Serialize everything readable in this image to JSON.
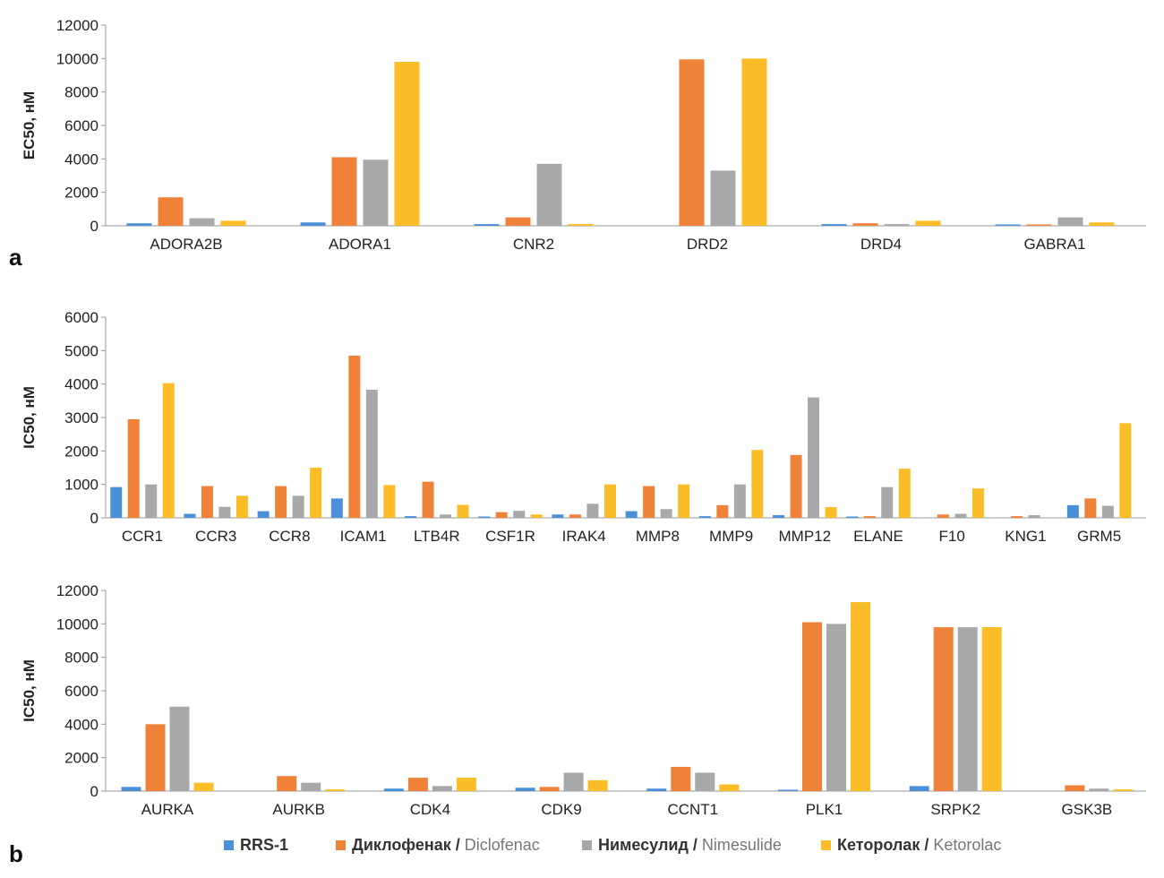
{
  "colors": {
    "rrs1": "#4a90d9",
    "diclofenac": "#ef8139",
    "nimesulide": "#a7a8aa",
    "ketorolac": "#fbbd27",
    "axis": "#999999",
    "text": "#222222"
  },
  "panel_letters": {
    "a": "a",
    "b": "b"
  },
  "legend": [
    {
      "key": "rrs1",
      "ru": "RRS-1",
      "sep": "",
      "en": ""
    },
    {
      "key": "diclofenac",
      "ru": "Диклофенак",
      "sep": " / ",
      "en": "Diclofenac"
    },
    {
      "key": "nimesulide",
      "ru": "Нимесулид",
      "sep": " / ",
      "en": "Nimesulide"
    },
    {
      "key": "ketorolac",
      "ru": "Кеторолак",
      "sep": " / ",
      "en": "Ketorolac"
    }
  ],
  "chart_data": [
    {
      "id": "chart-a",
      "type": "bar",
      "ylabel": "EC50, нМ",
      "ylim": [
        0,
        12000
      ],
      "yticks": [
        0,
        2000,
        4000,
        6000,
        8000,
        10000,
        12000
      ],
      "categories": [
        "ADORA2B",
        "ADORA1",
        "CNR2",
        "DRD2",
        "DRD4",
        "GABRA1"
      ],
      "series": [
        {
          "key": "rrs1",
          "values": [
            150,
            200,
            100,
            0,
            100,
            80
          ]
        },
        {
          "key": "diclofenac",
          "values": [
            1700,
            4100,
            500,
            9950,
            150,
            80
          ]
        },
        {
          "key": "nimesulide",
          "values": [
            450,
            3950,
            3700,
            3300,
            100,
            500
          ]
        },
        {
          "key": "ketorolac",
          "values": [
            300,
            9800,
            100,
            10000,
            300,
            200
          ]
        }
      ]
    },
    {
      "id": "chart-b1",
      "type": "bar",
      "ylabel": "IC50, нМ",
      "ylim": [
        0,
        6000
      ],
      "yticks": [
        0,
        1000,
        2000,
        3000,
        4000,
        5000,
        6000
      ],
      "categories": [
        "CCR1",
        "CCR3",
        "CCR8",
        "ICAM1",
        "LTB4R",
        "CSF1R",
        "IRAK4",
        "MMP8",
        "MMP9",
        "MMP12",
        "ELANE",
        "F10",
        "KNG1",
        "GRM5"
      ],
      "series": [
        {
          "key": "rrs1",
          "values": [
            920,
            120,
            200,
            580,
            50,
            30,
            100,
            200,
            50,
            80,
            30,
            0,
            0,
            380
          ]
        },
        {
          "key": "diclofenac",
          "values": [
            2950,
            950,
            950,
            4850,
            1080,
            170,
            100,
            950,
            380,
            1880,
            50,
            100,
            50,
            580
          ]
        },
        {
          "key": "nimesulide",
          "values": [
            1000,
            330,
            660,
            3830,
            100,
            210,
            420,
            260,
            1000,
            3600,
            920,
            120,
            80,
            360
          ]
        },
        {
          "key": "ketorolac",
          "values": [
            4030,
            660,
            1500,
            980,
            390,
            100,
            1000,
            1000,
            2030,
            320,
            1470,
            880,
            0,
            2830
          ]
        }
      ]
    },
    {
      "id": "chart-b2",
      "type": "bar",
      "ylabel": "IC50, нМ",
      "ylim": [
        0,
        12000
      ],
      "yticks": [
        0,
        2000,
        4000,
        6000,
        8000,
        10000,
        12000
      ],
      "categories": [
        "AURKA",
        "AURKB",
        "CDK4",
        "CDK9",
        "CCNT1",
        "PLK1",
        "SRPK2",
        "GSK3B"
      ],
      "series": [
        {
          "key": "rrs1",
          "values": [
            250,
            0,
            150,
            200,
            150,
            50,
            300,
            0
          ]
        },
        {
          "key": "diclofenac",
          "values": [
            4000,
            900,
            800,
            250,
            1450,
            10100,
            9800,
            350
          ]
        },
        {
          "key": "nimesulide",
          "values": [
            5050,
            500,
            300,
            1100,
            1100,
            10000,
            9800,
            150
          ]
        },
        {
          "key": "ketorolac",
          "values": [
            500,
            100,
            800,
            650,
            400,
            11300,
            9800,
            100
          ]
        }
      ]
    }
  ]
}
